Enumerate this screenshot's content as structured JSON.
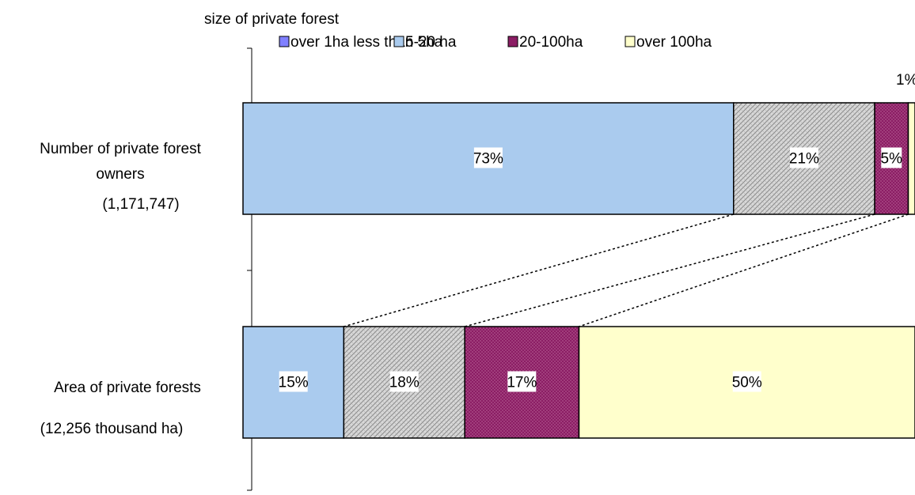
{
  "chart_data": {
    "type": "stacked-bar-horizontal-100",
    "legend_title": "size of private forest",
    "legend_position": "top",
    "series": [
      {
        "name": "over 1ha less than 5ha",
        "color": "#aacbee"
      },
      {
        "name": "5-20 ha",
        "color": "#d4d4d4"
      },
      {
        "name": "20-100ha",
        "color": "#8b1d64"
      },
      {
        "name": "over 100ha",
        "color": "#ffffcc"
      }
    ],
    "legend_entries": [
      {
        "label": "over 1ha less than 5ha",
        "color": "#8080ff"
      },
      {
        "label": "5-20 ha",
        "color": "#aacbee"
      },
      {
        "label": "20-100ha",
        "color": "#8b1d64"
      },
      {
        "label": "over 100ha",
        "color": "#ffffcc"
      }
    ],
    "categories": [
      {
        "label_lines": [
          "Number of private forest",
          "owners",
          "(1,171,747)"
        ],
        "values": [
          73,
          21,
          5,
          1
        ],
        "labels": [
          "73%",
          "21%",
          "5%",
          "1%"
        ]
      },
      {
        "label_lines": [
          "Area of private forests",
          "(12,256 thousand ha)"
        ],
        "values": [
          15,
          18,
          17,
          50
        ],
        "labels": [
          "15%",
          "18%",
          "17%",
          "50%"
        ]
      }
    ],
    "xlim": [
      0,
      100
    ],
    "grid": false
  }
}
